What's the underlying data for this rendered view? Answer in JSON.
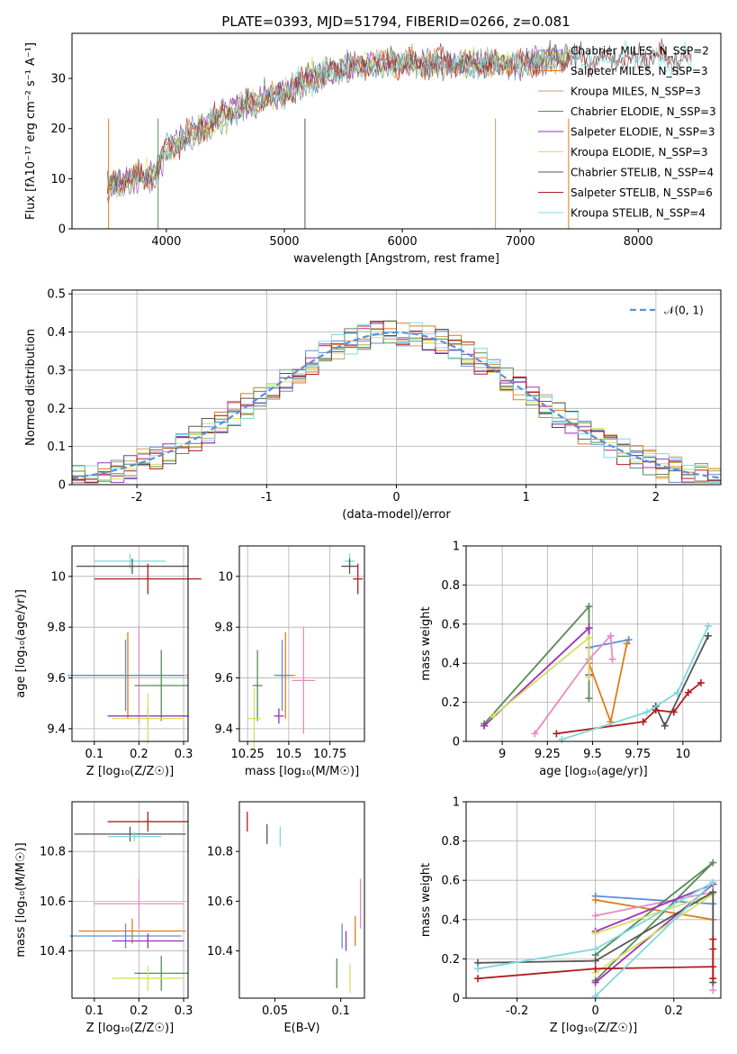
{
  "chart_data": [
    {
      "type": "line",
      "title": "PLATE=0393, MJD=51794, FIBERID=0266, z=0.081",
      "xlabel": "wavelength [Angstrom, rest frame]",
      "ylabel": "Flux [fλ10⁻¹⁷ erg cm⁻² s⁻¹ A⁻¹]",
      "xlim": [
        3200,
        8700
      ],
      "ylim": [
        0,
        39
      ],
      "xticks": [
        4000,
        5000,
        6000,
        7000,
        8000
      ],
      "yticks": [
        0,
        10,
        20,
        30
      ],
      "grid": false,
      "legend_position": "upper-right",
      "series": [
        {
          "name": "Chabrier MILES, N_SSP=2",
          "color": "#5b8fd6"
        },
        {
          "name": "Salpeter MILES, N_SSP=3",
          "color": "#e07b1a"
        },
        {
          "name": "Kroupa MILES, N_SSP=3",
          "color": "#c8a060"
        },
        {
          "name": "Chabrier ELODIE, N_SSP=3",
          "color": "#5a8a5a"
        },
        {
          "name": "Salpeter ELODIE, N_SSP=3",
          "color": "#9b30b8"
        },
        {
          "name": "Kroupa ELODIE, N_SSP=3",
          "color": "#d4e060"
        },
        {
          "name": "Chabrier STELIB, N_SSP=4",
          "color": "#555555"
        },
        {
          "name": "Salpeter STELIB, N_SSP=6",
          "color": "#b21e1e"
        },
        {
          "name": "Kroupa STELIB, N_SSP=4",
          "color": "#80d8e0"
        }
      ],
      "continuum": {
        "x": [
          3500,
          3700,
          3900,
          4000,
          4300,
          4600,
          5000,
          5200,
          5500,
          5800,
          6100,
          6400,
          6700,
          7000,
          7300,
          7500
        ],
        "y": [
          8,
          10,
          11,
          16,
          20,
          24,
          27,
          30,
          32,
          33,
          33,
          33,
          33,
          33,
          34,
          34
        ]
      }
    },
    {
      "type": "step",
      "xlabel": "(data-model)/error",
      "ylabel": "Normed distribution",
      "xlim": [
        -2.5,
        2.5
      ],
      "ylim": [
        0,
        0.51
      ],
      "xticks": [
        -2,
        -1,
        0,
        1,
        2
      ],
      "yticks": [
        0.0,
        0.1,
        0.2,
        0.3,
        0.4,
        0.5
      ],
      "grid": true,
      "legend_position": "upper-right",
      "reference": {
        "name": "𝒩(0, 1)",
        "mean": 0,
        "sd": 1,
        "color": "#5b8fd6"
      }
    },
    {
      "type": "errorbar",
      "xlabel": "Z [log₁₀(Z/Z☉)]",
      "ylabel": "age  [log₁₀(age/yr)]",
      "xlim": [
        0.05,
        0.31
      ],
      "ylim": [
        9.35,
        10.12
      ],
      "xticks": [
        0.1,
        0.2,
        0.3
      ],
      "yticks": [
        9.4,
        9.6,
        9.8,
        10.0
      ],
      "grid": true,
      "points": [
        {
          "x": 0.18,
          "y": 10.06,
          "xerr": 0.08,
          "yerr": 0.03,
          "color": "#80d8e0"
        },
        {
          "x": 0.185,
          "y": 10.04,
          "xerr": 0.125,
          "yerr": 0.03,
          "color": "#555555"
        },
        {
          "x": 0.22,
          "y": 9.99,
          "xerr": 0.12,
          "yerr": 0.06,
          "color": "#b21e1e"
        },
        {
          "x": 0.2,
          "y": 9.61,
          "xerr": 0.11,
          "yerr": 0.19,
          "color": "#e88bc0"
        },
        {
          "x": 0.175,
          "y": 9.61,
          "xerr": 0.125,
          "yerr": 0.17,
          "color": "#e07b1a"
        },
        {
          "x": 0.17,
          "y": 9.61,
          "xerr": 0.13,
          "yerr": 0.14,
          "color": "#5b8fd6"
        },
        {
          "x": 0.25,
          "y": 9.57,
          "xerr": 0.06,
          "yerr": 0.14,
          "color": "#5a8a5a"
        },
        {
          "x": 0.22,
          "y": 9.45,
          "xerr": 0.09,
          "yerr": 0.03,
          "color": "#9b30b8"
        },
        {
          "x": 0.22,
          "y": 9.44,
          "xerr": 0.08,
          "yerr": 0.1,
          "color": "#d4e060"
        }
      ]
    },
    {
      "type": "errorbar",
      "xlabel": "mass [log₁₀(M/M☉)]",
      "xlim": [
        10.2,
        10.96
      ],
      "ylim": [
        9.35,
        10.12
      ],
      "xticks": [
        10.25,
        10.5,
        10.75
      ],
      "yticks": [
        9.4,
        9.6,
        9.8,
        10.0
      ],
      "grid": true,
      "points": [
        {
          "x": 10.87,
          "y": 10.06,
          "xerr": 0.03,
          "yerr": 0.03,
          "color": "#80d8e0"
        },
        {
          "x": 10.87,
          "y": 10.04,
          "xerr": 0.05,
          "yerr": 0.03,
          "color": "#555555"
        },
        {
          "x": 10.92,
          "y": 9.99,
          "xerr": 0.03,
          "yerr": 0.06,
          "color": "#b21e1e"
        },
        {
          "x": 10.59,
          "y": 9.59,
          "xerr": 0.07,
          "yerr": 0.21,
          "color": "#e88bc0"
        },
        {
          "x": 10.48,
          "y": 9.61,
          "xerr": 0.06,
          "yerr": 0.17,
          "color": "#e07b1a"
        },
        {
          "x": 10.46,
          "y": 9.61,
          "xerr": 0.05,
          "yerr": 0.14,
          "color": "#5b8fd6"
        },
        {
          "x": 10.31,
          "y": 9.57,
          "xerr": 0.03,
          "yerr": 0.14,
          "color": "#5a8a5a"
        },
        {
          "x": 10.44,
          "y": 9.45,
          "xerr": 0.03,
          "yerr": 0.03,
          "color": "#9b30b8"
        },
        {
          "x": 10.29,
          "y": 9.44,
          "xerr": 0.04,
          "yerr": 0.12,
          "color": "#d4e060"
        }
      ]
    },
    {
      "type": "line",
      "xlabel": "age  [log₁₀(age/yr)]",
      "ylabel": "mass weight",
      "xlim": [
        8.8,
        10.21
      ],
      "ylim": [
        0,
        1
      ],
      "xticks": [
        9.0,
        9.25,
        9.5,
        9.75,
        10.0
      ],
      "yticks": [
        0.0,
        0.2,
        0.4,
        0.6,
        0.8,
        1.0
      ],
      "grid": true,
      "series": [
        {
          "color": "#5b8fd6",
          "x": [
            9.48,
            9.7
          ],
          "y": [
            0.48,
            0.52
          ]
        },
        {
          "color": "#e07b1a",
          "x": [
            9.48,
            9.6,
            9.69
          ],
          "y": [
            0.4,
            0.1,
            0.5
          ]
        },
        {
          "color": "#e88bc0",
          "x": [
            9.18,
            9.48,
            9.6,
            9.61
          ],
          "y": [
            0.04,
            0.42,
            0.54,
            0.42
          ]
        },
        {
          "color": "#5a8a5a",
          "x": [
            8.9,
            9.48,
            9.48
          ],
          "y": [
            0.09,
            0.69,
            0.22
          ]
        },
        {
          "color": "#9b30b8",
          "x": [
            8.9,
            9.48,
            9.48
          ],
          "y": [
            0.08,
            0.58,
            0.34
          ]
        },
        {
          "color": "#d4e060",
          "x": [
            8.95,
            9.48,
            9.48
          ],
          "y": [
            0.13,
            0.53,
            0.33
          ]
        },
        {
          "color": "#555555",
          "x": [
            9.85,
            9.9,
            10.14
          ],
          "y": [
            0.18,
            0.08,
            0.54
          ]
        },
        {
          "color": "#b21e1e",
          "x": [
            9.3,
            9.78,
            9.85,
            9.95,
            10.03,
            10.1
          ],
          "y": [
            0.04,
            0.1,
            0.16,
            0.15,
            0.25,
            0.3
          ]
        },
        {
          "color": "#80d8e0",
          "x": [
            9.33,
            9.8,
            9.97,
            10.14
          ],
          "y": [
            0.01,
            0.15,
            0.25,
            0.59
          ]
        }
      ]
    },
    {
      "type": "errorbar",
      "xlabel": "Z [log₁₀(Z/Z☉)]",
      "ylabel": "mass [log₁₀(M/M☉)]",
      "xlim": [
        0.05,
        0.31
      ],
      "ylim": [
        10.21,
        11.0
      ],
      "xticks": [
        0.1,
        0.2,
        0.3
      ],
      "yticks": [
        10.4,
        10.6,
        10.8
      ],
      "grid": true,
      "points": [
        {
          "x": 0.22,
          "y": 10.92,
          "xerr": 0.09,
          "yerr": 0.04,
          "color": "#b21e1e"
        },
        {
          "x": 0.18,
          "y": 10.87,
          "xerr": 0.125,
          "yerr": 0.03,
          "color": "#555555"
        },
        {
          "x": 0.19,
          "y": 10.86,
          "xerr": 0.06,
          "yerr": 0.02,
          "color": "#80d8e0"
        },
        {
          "x": 0.2,
          "y": 10.59,
          "xerr": 0.1,
          "yerr": 0.1,
          "color": "#e88bc0"
        },
        {
          "x": 0.185,
          "y": 10.48,
          "xerr": 0.12,
          "yerr": 0.05,
          "color": "#e07b1a"
        },
        {
          "x": 0.17,
          "y": 10.46,
          "xerr": 0.125,
          "yerr": 0.05,
          "color": "#5b8fd6"
        },
        {
          "x": 0.22,
          "y": 10.44,
          "xerr": 0.08,
          "yerr": 0.03,
          "color": "#9b30b8"
        },
        {
          "x": 0.25,
          "y": 10.31,
          "xerr": 0.06,
          "yerr": 0.07,
          "color": "#5a8a5a"
        },
        {
          "x": 0.22,
          "y": 10.29,
          "xerr": 0.08,
          "yerr": 0.05,
          "color": "#d4e060"
        }
      ]
    },
    {
      "type": "errorbar",
      "xlabel": "E(B-V)",
      "xlim": [
        0.023,
        0.118
      ],
      "ylim": [
        10.21,
        11.0
      ],
      "xticks": [
        0.05,
        0.1
      ],
      "yticks": [
        10.4,
        10.6,
        10.8
      ],
      "grid": false,
      "points": [
        {
          "x": 0.029,
          "y": 10.92,
          "xerr": 0,
          "yerr": 0.04,
          "color": "#b21e1e"
        },
        {
          "x": 0.044,
          "y": 10.87,
          "xerr": 0,
          "yerr": 0.04,
          "color": "#555555"
        },
        {
          "x": 0.054,
          "y": 10.86,
          "xerr": 0,
          "yerr": 0.04,
          "color": "#80d8e0"
        },
        {
          "x": 0.115,
          "y": 10.59,
          "xerr": 0,
          "yerr": 0.1,
          "color": "#e88bc0"
        },
        {
          "x": 0.111,
          "y": 10.48,
          "xerr": 0,
          "yerr": 0.06,
          "color": "#e07b1a"
        },
        {
          "x": 0.101,
          "y": 10.46,
          "xerr": 0,
          "yerr": 0.05,
          "color": "#5b8fd6"
        },
        {
          "x": 0.104,
          "y": 10.44,
          "xerr": 0,
          "yerr": 0.04,
          "color": "#9b30b8"
        },
        {
          "x": 0.097,
          "y": 10.31,
          "xerr": 0,
          "yerr": 0.06,
          "color": "#5a8a5a"
        },
        {
          "x": 0.107,
          "y": 10.29,
          "xerr": 0,
          "yerr": 0.06,
          "color": "#d4e060"
        }
      ]
    },
    {
      "type": "line",
      "xlabel": "Z [log₁₀(Z/Z☉)]",
      "ylabel": "mass weight",
      "xlim": [
        -0.33,
        0.32
      ],
      "ylim": [
        0,
        1
      ],
      "xticks": [
        -0.2,
        0.0,
        0.2
      ],
      "yticks": [
        0.0,
        0.2,
        0.4,
        0.6,
        0.8,
        1.0
      ],
      "grid": true,
      "series": [
        {
          "color": "#5b8fd6",
          "x": [
            0.0,
            0.3
          ],
          "y": [
            0.52,
            0.48
          ]
        },
        {
          "color": "#e07b1a",
          "x": [
            0.0,
            0.3
          ],
          "y": [
            0.5,
            0.4
          ]
        },
        {
          "color": "#e88bc0",
          "x": [
            0.0,
            0.3,
            0.3
          ],
          "y": [
            0.42,
            0.54,
            0.04
          ]
        },
        {
          "color": "#5a8a5a",
          "x": [
            0.0,
            0.3,
            0.0
          ],
          "y": [
            0.22,
            0.69,
            0.09
          ]
        },
        {
          "color": "#9b30b8",
          "x": [
            0.0,
            0.3,
            0.0
          ],
          "y": [
            0.34,
            0.58,
            0.08
          ]
        },
        {
          "color": "#d4e060",
          "x": [
            0.0,
            0.3,
            0.0
          ],
          "y": [
            0.33,
            0.53,
            0.13
          ]
        },
        {
          "color": "#555555",
          "x": [
            -0.3,
            0.0,
            0.3,
            0.3
          ],
          "y": [
            0.18,
            0.19,
            0.54,
            0.08
          ]
        },
        {
          "color": "#b21e1e",
          "x": [
            -0.3,
            0.0,
            0.3,
            0.3,
            0.3,
            0.3
          ],
          "y": [
            0.1,
            0.15,
            0.16,
            0.3,
            0.25,
            0.1
          ]
        },
        {
          "color": "#80d8e0",
          "x": [
            -0.3,
            0.0,
            0.3,
            0.0
          ],
          "y": [
            0.15,
            0.25,
            0.59,
            0.01
          ]
        }
      ]
    }
  ]
}
